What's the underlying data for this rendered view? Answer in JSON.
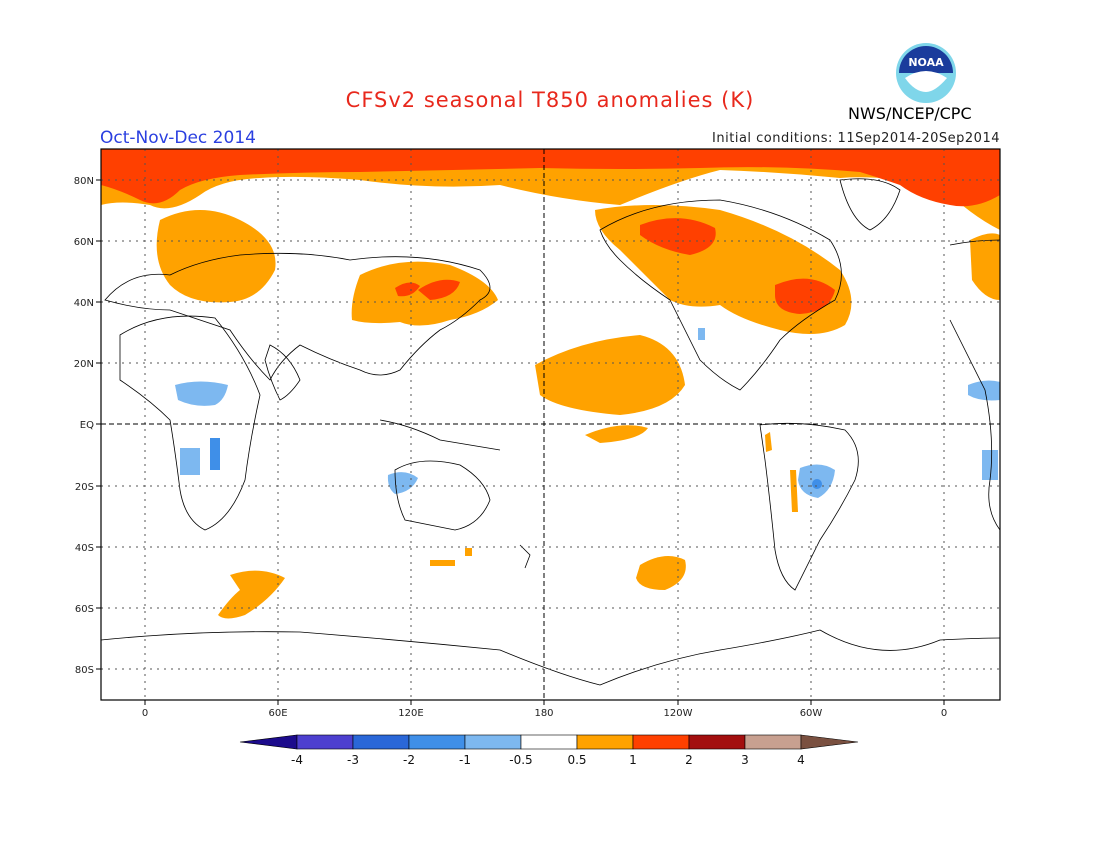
{
  "title": "CFSv2 seasonal T850 anomalies (K)",
  "season": "Oct-Nov-Dec 2014",
  "initial_conditions": "Initial conditions: 11Sep2014-20Sep2014",
  "agency": "NWS/NCEP/CPC",
  "logo_text": "NOAA",
  "lat_labels": [
    "80N",
    "60N",
    "40N",
    "20N",
    "EQ",
    "20S",
    "40S",
    "60S",
    "80S"
  ],
  "lon_labels": [
    "0",
    "60E",
    "120E",
    "180",
    "120W",
    "60W",
    "0"
  ],
  "colorbar": {
    "labels": [
      "-4",
      "-3",
      "-2",
      "-1",
      "-0.5",
      "0.5",
      "1",
      "2",
      "3",
      "4"
    ],
    "colors": [
      "#1c0b8c",
      "#4d3fcf",
      "#2a67d8",
      "#3f8fe8",
      "#7db8f0",
      "#ffffff",
      "#ffa200",
      "#ff4000",
      "#a30f0f",
      "#c8a090",
      "#7a5040"
    ]
  }
}
